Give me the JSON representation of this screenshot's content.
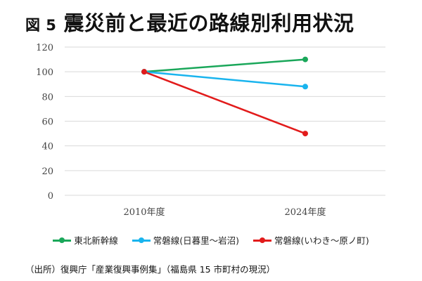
{
  "title": {
    "figure_label": "図 5",
    "text": "震災前と最近の路線別利用状況"
  },
  "source_note": "（出所）復興庁「産業復興事例集」（福島県 15 市町村の現況）",
  "chart_data": {
    "type": "line",
    "categories": [
      "2010年度",
      "2024年度"
    ],
    "ylim": [
      0,
      120
    ],
    "yticks": [
      0,
      20,
      40,
      60,
      80,
      100,
      120
    ],
    "grid": true,
    "legend_position": "bottom",
    "series": [
      {
        "name": "東北新幹線",
        "color": "#1aa75a",
        "values": [
          100,
          110
        ]
      },
      {
        "name": "常磐線(日暮里～岩沼)",
        "color": "#19b4ee",
        "values": [
          100,
          88
        ]
      },
      {
        "name": "常磐線(いわき～原ノ町)",
        "color": "#e21b1b",
        "values": [
          100,
          50
        ]
      }
    ]
  }
}
